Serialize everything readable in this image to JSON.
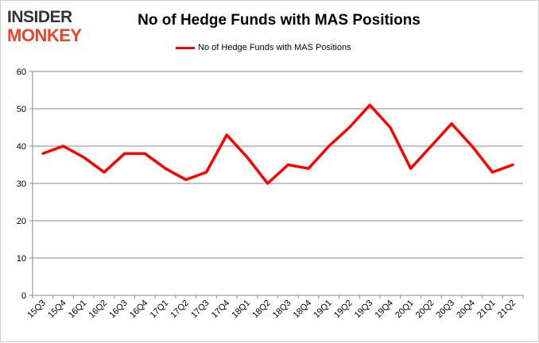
{
  "logo": {
    "line1": "INSIDER",
    "line2": "MONKEY"
  },
  "chart_data": {
    "type": "line",
    "title": "No of Hedge Funds with MAS Positions",
    "categories": [
      "15Q3",
      "15Q4",
      "16Q1",
      "16Q2",
      "16Q3",
      "16Q4",
      "17Q1",
      "17Q2",
      "17Q3",
      "17Q4",
      "18Q1",
      "18Q2",
      "18Q3",
      "18Q4",
      "19Q1",
      "19Q2",
      "19Q3",
      "19Q4",
      "20Q1",
      "20Q2",
      "20Q3",
      "20Q4",
      "21Q1",
      "21Q2"
    ],
    "series": [
      {
        "name": "No of Hedge Funds with MAS Positions",
        "color": "#ff0000",
        "values": [
          38,
          40,
          37,
          33,
          38,
          38,
          34,
          31,
          33,
          43,
          37,
          30,
          35,
          34,
          40,
          45,
          51,
          45,
          34,
          40,
          46,
          40,
          33,
          35
        ]
      }
    ],
    "ylim": [
      0,
      60
    ],
    "yticks": [
      0,
      10,
      20,
      30,
      40,
      50,
      60
    ],
    "grid": true,
    "legend": "top"
  }
}
